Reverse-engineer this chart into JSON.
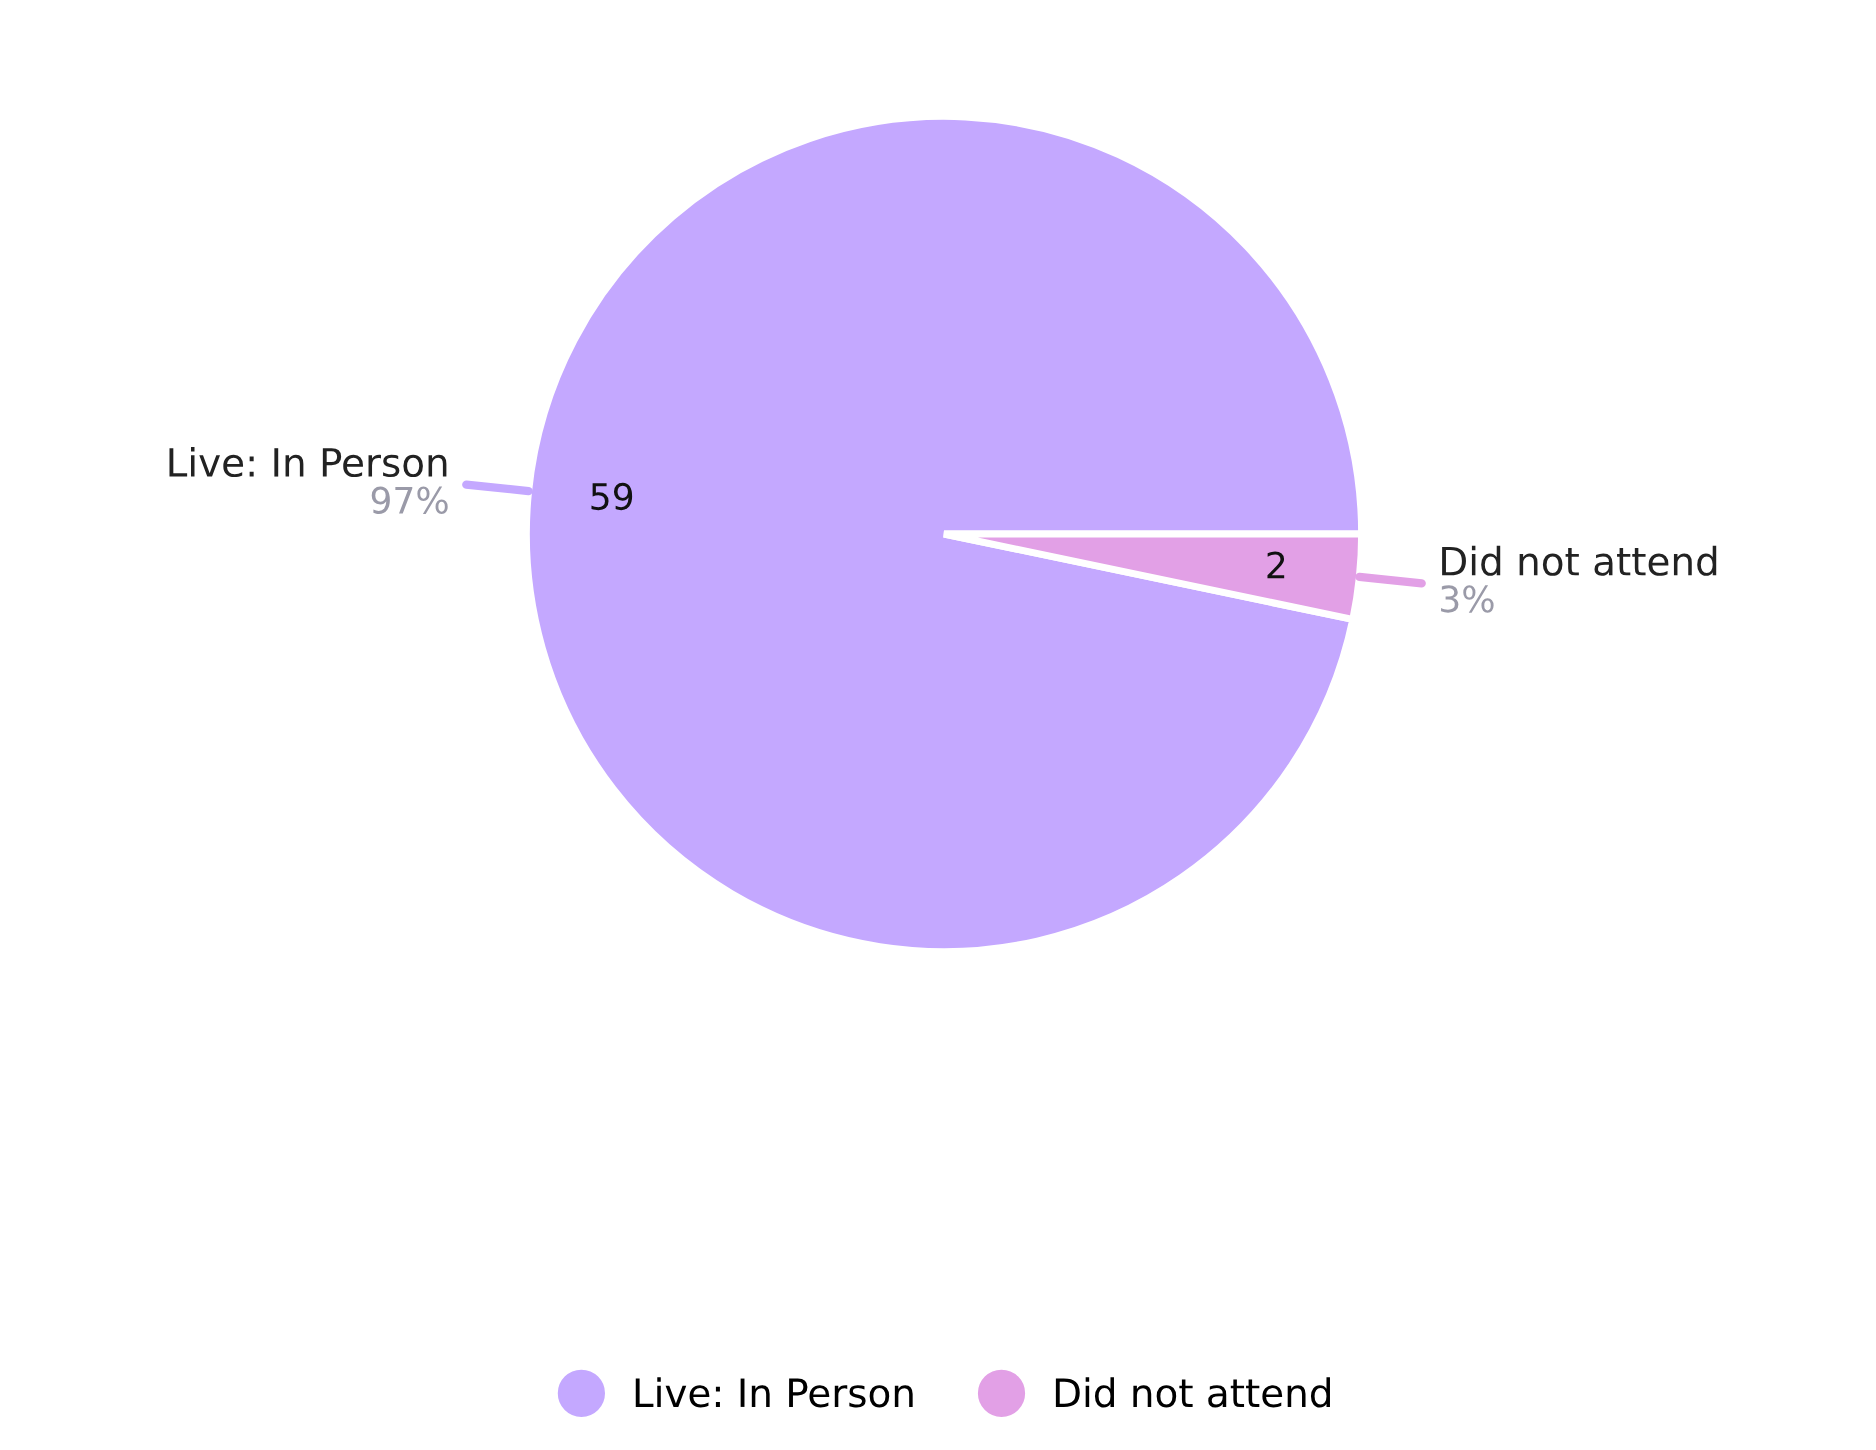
{
  "chart_data": {
    "type": "pie",
    "categories": [
      "Live: In Person",
      "Did not attend"
    ],
    "values": [
      59,
      2
    ],
    "colors": [
      "#c4a8ff",
      "#e2a0e6"
    ],
    "data_labels": true,
    "annotations": [
      "97%",
      "3%"
    ],
    "legend": "bottom"
  }
}
